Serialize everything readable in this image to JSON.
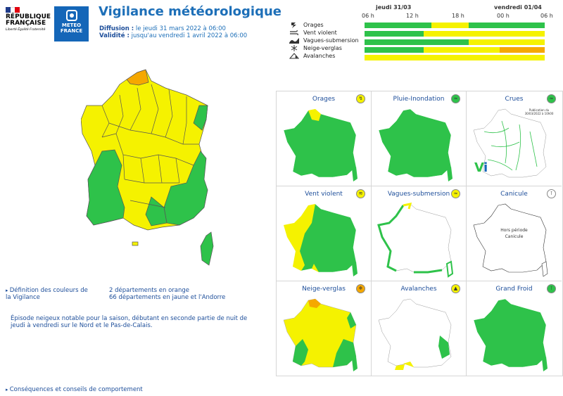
{
  "header": {
    "rf_name": "RÉPUBLIQUE FRANÇAISE",
    "rf_motto": "Liberté Égalité Fraternité",
    "mf_label": "METEO FRANCE",
    "title": "Vigilance météorologique",
    "diffusion_label": "Diffusion :",
    "diffusion_value": "le jeudi 31 mars 2022 à 06:00",
    "validite_label": "Validité :",
    "validite_value": "jusqu'au vendredi 1 avril 2022 à 06:00"
  },
  "timeline": {
    "day1": "jeudi 31/03",
    "day2": "vendredi 01/04",
    "hours": [
      "06 h",
      "12 h",
      "18 h",
      "00 h",
      "06 h"
    ],
    "rows": [
      {
        "label": "Orages",
        "icon": "lightning-icon",
        "segments": [
          {
            "level": "green",
            "share": 0.37
          },
          {
            "level": "yellow",
            "share": 0.21
          },
          {
            "level": "green",
            "share": 0.42
          }
        ]
      },
      {
        "label": "Vent violent",
        "icon": "wind-icon",
        "segments": [
          {
            "level": "green",
            "share": 0.33
          },
          {
            "level": "yellow",
            "share": 0.67
          }
        ]
      },
      {
        "label": "Vagues-submersion",
        "icon": "wave-icon",
        "segments": [
          {
            "level": "green",
            "share": 0.58
          },
          {
            "level": "yellow",
            "share": 0.42
          }
        ]
      },
      {
        "label": "Neige-verglas",
        "icon": "snowflake-icon",
        "segments": [
          {
            "level": "green",
            "share": 0.33
          },
          {
            "level": "yellow",
            "share": 0.42
          },
          {
            "level": "orange",
            "share": 0.25
          }
        ]
      },
      {
        "label": "Avalanches",
        "icon": "avalanche-icon",
        "segments": [
          {
            "level": "yellow",
            "share": 1.0
          }
        ]
      }
    ],
    "colors": {
      "green": "#2ec24a",
      "yellow": "#f5f200",
      "orange": "#f5a800"
    }
  },
  "summary": {
    "definition_link": "Définition des couleurs de la Vigilance",
    "orange_count": "2 départements en orange",
    "yellow_count": "66 départements en jaune et l'Andorre",
    "bulletin": "Épisode neigeux notable pour la saison, débutant en seconde partie de nuit de jeudi à vendredi sur le Nord et le Pas-de-Calais.",
    "consequences_link": "Conséquences et conseils de comportement"
  },
  "maps": [
    {
      "title": "Orages",
      "icon": "lightning-icon",
      "level": "yellow"
    },
    {
      "title": "Pluie-Inondation",
      "icon": "rain-icon",
      "level": "green"
    },
    {
      "title": "Crues",
      "icon": "flood-icon",
      "level": "green",
      "note": "Publication du 30/03/2022 à 10h00"
    },
    {
      "title": "Vent violent",
      "icon": "wind-icon",
      "level": "yellow"
    },
    {
      "title": "Vagues-submersion",
      "icon": "wave-icon",
      "level": "yellow"
    },
    {
      "title": "Canicule",
      "icon": "thermometer-icon",
      "level": "white",
      "note": "Hors période Canicule"
    },
    {
      "title": "Neige-verglas",
      "icon": "snowflake-icon",
      "level": "orange"
    },
    {
      "title": "Avalanches",
      "icon": "avalanche-icon",
      "level": "yellow"
    },
    {
      "title": "Grand Froid",
      "icon": "thermometer-icon",
      "level": "green"
    }
  ]
}
